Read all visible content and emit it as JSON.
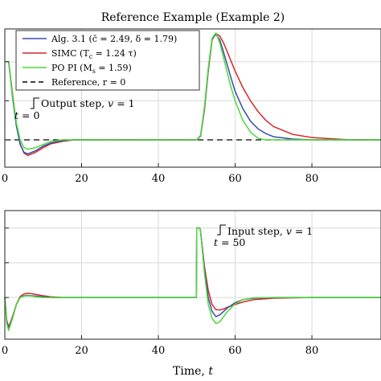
{
  "chart_data": [
    {
      "type": "line",
      "title": "Reference Example (Example 2)",
      "xlabel": "",
      "ylabel": "",
      "xlim": [
        0,
        98
      ],
      "ylim": [
        -0.35,
        1.42
      ],
      "x_ticks": [
        0,
        20,
        40,
        60,
        80
      ],
      "x_tick_labels": [
        "0",
        "20",
        "40",
        "60",
        "80"
      ],
      "grid": true,
      "legend_position": "top-left",
      "series": [
        {
          "name": "Alg. 3.1 ($\\bar{c}$ = 2.49, $\\delta$ = 1.79)",
          "color": "#3b4ba8",
          "x": [
            0,
            1,
            2,
            3,
            4,
            5,
            6,
            8,
            10,
            12,
            15,
            18,
            22,
            30,
            40,
            49.9,
            50,
            51,
            52,
            53,
            54,
            55,
            56,
            57,
            58,
            59,
            60,
            62,
            64,
            66,
            68,
            70,
            75,
            80,
            90,
            98
          ],
          "y": [
            1,
            1,
            0.55,
            0.18,
            -0.06,
            -0.16,
            -0.18,
            -0.14,
            -0.08,
            -0.04,
            -0.01,
            0,
            0,
            0,
            0,
            0,
            0,
            0.05,
            0.4,
            0.9,
            1.3,
            1.35,
            1.28,
            1.12,
            0.95,
            0.78,
            0.62,
            0.4,
            0.24,
            0.14,
            0.08,
            0.04,
            0.01,
            0,
            0,
            0
          ]
        },
        {
          "name": "SIMC ($T_c$ = 1.24$\\tau$)",
          "color": "#d62728",
          "x": [
            0,
            1,
            2,
            3,
            4,
            5,
            6,
            8,
            10,
            12,
            15,
            18,
            22,
            30,
            40,
            49.9,
            50,
            51,
            52,
            53,
            54,
            55,
            56,
            57,
            58,
            59,
            60,
            62,
            64,
            66,
            68,
            70,
            75,
            80,
            90,
            98
          ],
          "y": [
            1,
            1,
            0.6,
            0.2,
            -0.05,
            -0.17,
            -0.2,
            -0.16,
            -0.1,
            -0.05,
            -0.02,
            0,
            0,
            0,
            0,
            0,
            0,
            0.05,
            0.38,
            0.88,
            1.28,
            1.36,
            1.33,
            1.24,
            1.12,
            1.0,
            0.88,
            0.67,
            0.5,
            0.36,
            0.25,
            0.17,
            0.07,
            0.03,
            0,
            0
          ]
        },
        {
          "name": "PO PI ($M_s$ = 1.59)",
          "color": "#4cd93d",
          "x": [
            0,
            1,
            2,
            3,
            4,
            5,
            6,
            8,
            10,
            12,
            15,
            18,
            22,
            30,
            40,
            49.9,
            50,
            51,
            52,
            53,
            54,
            55,
            56,
            57,
            58,
            59,
            60,
            62,
            64,
            66,
            68,
            70,
            75,
            80,
            90,
            98
          ],
          "y": [
            1,
            1,
            0.58,
            0.22,
            0.0,
            -0.1,
            -0.12,
            -0.1,
            -0.06,
            -0.02,
            0,
            0,
            0,
            0,
            0,
            0,
            0,
            0.06,
            0.42,
            0.92,
            1.3,
            1.37,
            1.24,
            1.05,
            0.85,
            0.66,
            0.5,
            0.25,
            0.1,
            0.02,
            0,
            0,
            0,
            0,
            0,
            0
          ]
        },
        {
          "name": "Reference, $r$ = 0",
          "color": "#000000",
          "dashed": true,
          "x": [
            0,
            98
          ],
          "y": [
            0,
            0
          ]
        }
      ],
      "annotations": [
        {
          "text": "Output step, $v$ = 1",
          "x": 0,
          "y": 0.2
        },
        {
          "text": "$t$ = 0",
          "x": 0,
          "y": 0.2
        }
      ]
    },
    {
      "type": "line",
      "title": "",
      "xlabel": "Time, $t$",
      "ylabel": "",
      "xlim": [
        0,
        98
      ],
      "ylim": [
        -0.12,
        0.25
      ],
      "x_ticks": [
        0,
        20,
        40,
        60,
        80
      ],
      "x_tick_labels": [
        "0",
        "20",
        "40",
        "60",
        "80"
      ],
      "grid": true,
      "series": [
        {
          "name": "Alg. 3.1",
          "color": "#3b4ba8",
          "x": [
            0,
            0.5,
            1,
            2,
            3,
            4,
            5,
            6,
            7,
            8,
            10,
            12,
            15,
            20,
            30,
            40,
            49.9,
            50,
            50.8,
            51,
            52,
            53,
            54,
            55,
            56,
            57,
            58,
            60,
            62,
            65,
            70,
            80,
            98
          ],
          "y": [
            0,
            -0.07,
            -0.09,
            -0.06,
            -0.02,
            0.0,
            0.005,
            0.006,
            0.005,
            0.004,
            0.002,
            0.0,
            0,
            0,
            0,
            0,
            0,
            0.2,
            0.2,
            0.19,
            0.08,
            0.0,
            -0.04,
            -0.055,
            -0.05,
            -0.04,
            -0.03,
            -0.015,
            -0.006,
            -0.002,
            0,
            0,
            0
          ]
        },
        {
          "name": "SIMC",
          "color": "#d62728",
          "x": [
            0,
            0.5,
            1,
            2,
            3,
            4,
            5,
            6,
            7,
            8,
            10,
            12,
            15,
            20,
            30,
            40,
            49.9,
            50,
            50.8,
            51,
            52,
            53,
            54,
            55,
            56,
            57,
            58,
            60,
            62,
            65,
            70,
            80,
            98
          ],
          "y": [
            0,
            -0.065,
            -0.085,
            -0.055,
            -0.02,
            0.003,
            0.01,
            0.012,
            0.011,
            0.009,
            0.005,
            0.002,
            0,
            0,
            0,
            0,
            0,
            0.2,
            0.2,
            0.19,
            0.09,
            0.02,
            -0.02,
            -0.035,
            -0.036,
            -0.033,
            -0.028,
            -0.02,
            -0.013,
            -0.006,
            -0.002,
            0,
            0
          ]
        },
        {
          "name": "PO PI",
          "color": "#4cd93d",
          "x": [
            0,
            0.5,
            1,
            2,
            3,
            4,
            5,
            6,
            7,
            8,
            10,
            12,
            15,
            20,
            30,
            40,
            49.9,
            50,
            50.8,
            51,
            52,
            53,
            54,
            55,
            56,
            57,
            58,
            60,
            62,
            65,
            70,
            80,
            98
          ],
          "y": [
            0,
            -0.075,
            -0.095,
            -0.06,
            -0.02,
            0.0,
            0.004,
            0.005,
            0.004,
            0.002,
            0.0,
            0,
            0,
            0,
            0,
            0,
            0,
            0.2,
            0.2,
            0.19,
            0.07,
            -0.02,
            -0.06,
            -0.075,
            -0.07,
            -0.055,
            -0.04,
            -0.018,
            -0.006,
            -0.001,
            0,
            0,
            0
          ]
        }
      ],
      "annotations": [
        {
          "text": "Input step, $v$ = 1",
          "x": 50,
          "y": 0.2
        },
        {
          "text": "$t$ = 50",
          "x": 50,
          "y": 0.2
        }
      ]
    }
  ]
}
